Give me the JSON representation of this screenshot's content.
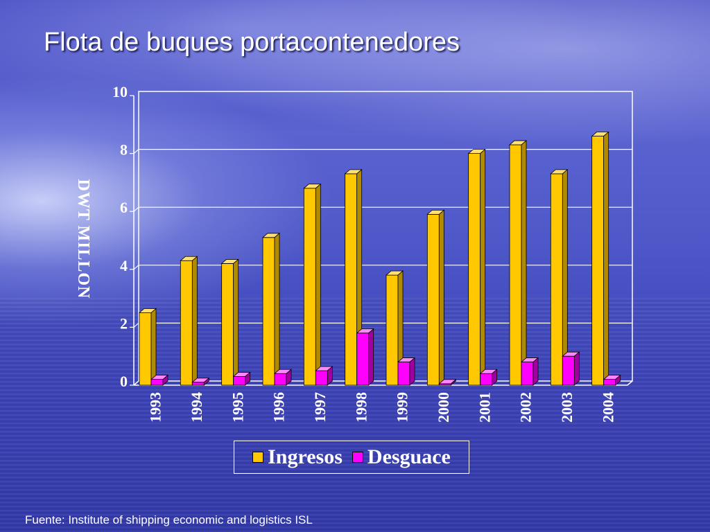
{
  "slide": {
    "title": "Flota de buques portacontenedores",
    "source": "Fuente: Institute of shipping economic and logistics ISL"
  },
  "colors": {
    "ingresos": "#ffc800",
    "ingresos_top": "#ffe070",
    "ingresos_side": "#b08a00",
    "desguace": "#ff00ff",
    "desguace_top": "#ff88ff",
    "desguace_side": "#a000a0"
  },
  "chart_data": {
    "type": "bar",
    "title": "",
    "xlabel": "",
    "ylabel": "DWT MILLON",
    "ylim": [
      0,
      10
    ],
    "yticks": [
      0,
      2,
      4,
      6,
      8,
      10
    ],
    "grid": true,
    "legend_position": "bottom",
    "categories": [
      "1993",
      "1994",
      "1995",
      "1996",
      "1997",
      "1998",
      "1999",
      "2000",
      "2001",
      "2002",
      "2003",
      "2004"
    ],
    "series": [
      {
        "name": "Ingresos",
        "values": [
          2.5,
          4.3,
          4.2,
          5.1,
          6.8,
          7.3,
          3.8,
          5.9,
          8.0,
          8.3,
          7.3,
          8.6
        ]
      },
      {
        "name": "Desguace",
        "values": [
          0.2,
          0.1,
          0.3,
          0.4,
          0.5,
          1.8,
          0.8,
          0.05,
          0.4,
          0.8,
          1.0,
          0.2
        ]
      }
    ]
  }
}
